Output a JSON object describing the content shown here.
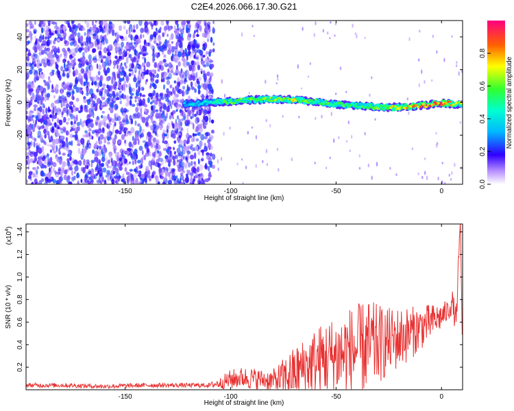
{
  "title": "C2E4.2026.066.17.30.G21",
  "chart_data": [
    {
      "type": "heatmap",
      "xlabel": "Height of straight line (km)",
      "ylabel": "Frequency (Hz)",
      "xlim": [
        -197,
        10
      ],
      "ylim": [
        -50,
        50
      ],
      "xticks": [
        -150,
        -100,
        -50,
        0
      ],
      "yticks": [
        -40,
        -20,
        0,
        20,
        40
      ],
      "colorbar": {
        "label": "Normalized spectral amplitude",
        "range": [
          0,
          1
        ],
        "ticks": [
          "0.0",
          "0.2",
          "0.4",
          "0.6",
          "0.8"
        ],
        "tick_values": [
          0.0,
          0.2,
          0.4,
          0.6,
          0.8
        ]
      },
      "noise_region": {
        "x_from": -197,
        "x_to": -108,
        "amplitude_range": [
          0.05,
          0.25
        ]
      },
      "ridge": {
        "x": [
          -122,
          -110,
          -100,
          -90,
          -80,
          -70,
          -60,
          -50,
          -40,
          -30,
          -20,
          -10,
          0,
          8
        ],
        "freq": [
          -1,
          0,
          0.5,
          1.5,
          2,
          1.5,
          0.5,
          -1,
          -2,
          -3,
          -3,
          -2,
          -0.5,
          -1
        ],
        "amplitude": [
          0.35,
          0.45,
          0.6,
          0.6,
          0.65,
          0.7,
          0.55,
          0.6,
          0.6,
          0.65,
          0.75,
          0.85,
          0.9,
          0.7
        ]
      }
    },
    {
      "type": "line",
      "xlabel": "Height of straight line (km)",
      "ylabel": "SNR (10 * v/v)",
      "scale_label": "(x10",
      "scale_exp": "4",
      "scale_close": ")",
      "xlim": [
        -197,
        10
      ],
      "ylim": [
        0,
        1.47
      ],
      "xticks": [
        -150,
        -100,
        -50,
        0
      ],
      "yticks": [
        0.2,
        0.4,
        0.6,
        0.8,
        1.0,
        1.2,
        1.4
      ],
      "series": [
        {
          "name": "SNR",
          "color": "#e83030",
          "x": [
            -197,
            -180,
            -160,
            -140,
            -125,
            -110,
            -105,
            -100,
            -95,
            -90,
            -85,
            -80,
            -75,
            -70,
            -65,
            -60,
            -55,
            -50,
            -45,
            -40,
            -35,
            -30,
            -25,
            -20,
            -15,
            -10,
            -5,
            0,
            3,
            5,
            7,
            8,
            9,
            10
          ],
          "y": [
            0.04,
            0.04,
            0.03,
            0.04,
            0.04,
            0.04,
            0.06,
            0.09,
            0.11,
            0.1,
            0.09,
            0.08,
            0.1,
            0.15,
            0.2,
            0.25,
            0.28,
            0.3,
            0.33,
            0.36,
            0.38,
            0.4,
            0.43,
            0.46,
            0.5,
            0.55,
            0.6,
            0.65,
            0.7,
            0.78,
            0.6,
            1.1,
            1.47,
            0.2
          ],
          "noise": [
            0.02,
            0.02,
            0.02,
            0.02,
            0.02,
            0.02,
            0.05,
            0.09,
            0.09,
            0.1,
            0.09,
            0.1,
            0.18,
            0.23,
            0.26,
            0.3,
            0.34,
            0.36,
            0.4,
            0.4,
            0.42,
            0.36,
            0.3,
            0.28,
            0.24,
            0.2,
            0.16,
            0.12,
            0.1,
            0.12,
            0.12,
            0.1,
            0.05,
            0.05
          ]
        }
      ]
    }
  ]
}
